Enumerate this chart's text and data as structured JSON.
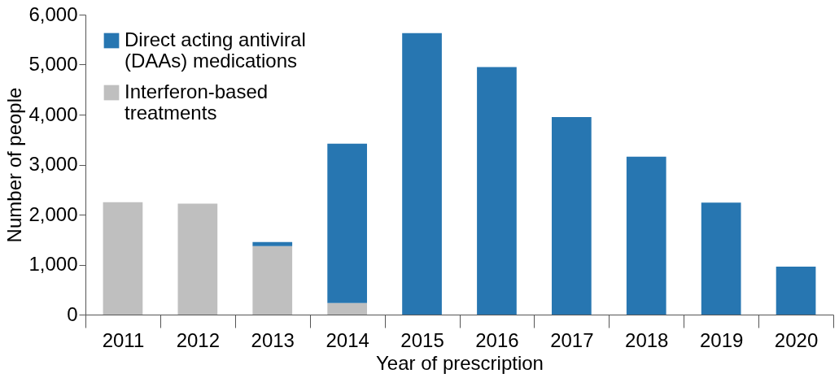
{
  "chart_data": {
    "type": "bar",
    "stacked": true,
    "xlabel": "Year of prescription",
    "ylabel": "Number of people",
    "categories": [
      "2011",
      "2012",
      "2013",
      "2014",
      "2015",
      "2016",
      "2017",
      "2018",
      "2019",
      "2020"
    ],
    "series": [
      {
        "name": "Interferon-based treatments",
        "color": "#bfbfbf",
        "values": [
          2250,
          2220,
          1370,
          230,
          0,
          0,
          0,
          0,
          0,
          0
        ]
      },
      {
        "name": "Direct acting antiviral (DAAs) medications",
        "color": "#2776b1",
        "values": [
          0,
          0,
          80,
          3190,
          5630,
          4950,
          3950,
          3160,
          2240,
          960
        ]
      }
    ],
    "ylim": [
      0,
      6000
    ],
    "yticks": [
      0,
      {
        "value": 1000,
        "label": "1,000"
      },
      {
        "value": 2000,
        "label": "2,000"
      },
      {
        "value": 3000,
        "label": "3,000"
      },
      {
        "value": 4000,
        "label": "4,000"
      },
      {
        "value": 5000,
        "label": "5,000"
      },
      {
        "value": 6000,
        "label": "6,000"
      }
    ],
    "grid": false,
    "legend": "top left"
  }
}
